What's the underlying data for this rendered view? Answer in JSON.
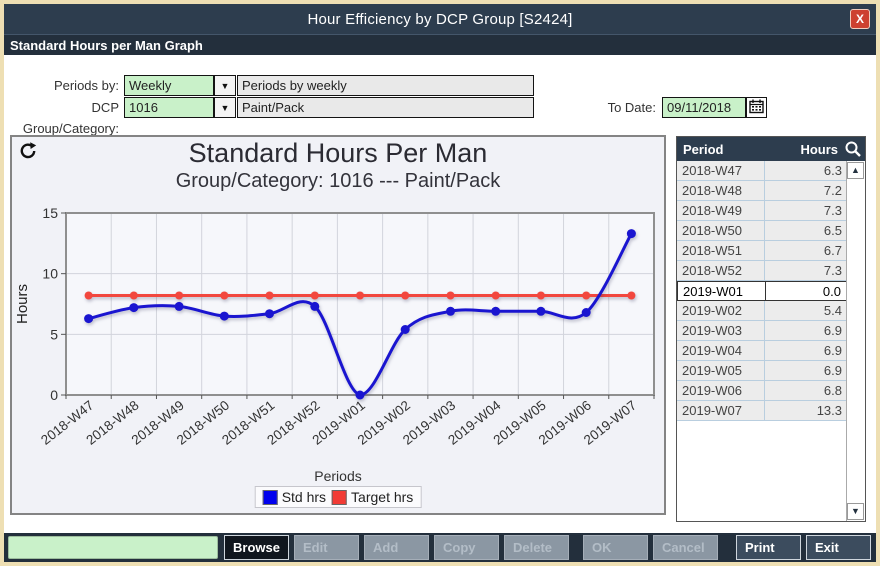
{
  "window": {
    "title": "Hour Efficiency by DCP Group [S2424]",
    "subtitle": "Standard Hours per Man Graph",
    "close_label": "X"
  },
  "form": {
    "periods_by_label": "Periods by:",
    "periods_by_value": "Weekly",
    "periods_by_desc": "Periods by weekly",
    "group_label": "DCP Group/Category:",
    "group_value": "1016",
    "group_desc": "Paint/Pack",
    "to_date_label": "To Date:",
    "to_date_value": "09/11/2018"
  },
  "chart_data": {
    "type": "line",
    "title": "Standard Hours Per Man",
    "subtitle": "Group/Category: 1016 --- Paint/Pack",
    "xlabel": "Periods",
    "ylabel": "Hours",
    "ylim": [
      0,
      15
    ],
    "yticks": [
      0,
      5,
      10,
      15
    ],
    "grid": true,
    "legend_position": "bottom",
    "categories": [
      "2018-W47",
      "2018-W48",
      "2018-W49",
      "2018-W50",
      "2018-W51",
      "2018-W52",
      "2019-W01",
      "2019-W02",
      "2019-W03",
      "2019-W04",
      "2019-W05",
      "2019-W06",
      "2019-W07"
    ],
    "series": [
      {
        "name": "Target hrs",
        "color": "#f2473e",
        "legend_color": "#f23b35",
        "smooth": false,
        "values": [
          8.2,
          8.2,
          8.2,
          8.2,
          8.2,
          8.2,
          8.2,
          8.2,
          8.2,
          8.2,
          8.2,
          8.2,
          8.2
        ]
      },
      {
        "name": "Std hrs",
        "color": "#1a15d0",
        "legend_color": "#0000ee",
        "smooth": true,
        "values": [
          6.3,
          7.2,
          7.3,
          6.5,
          6.7,
          7.3,
          0.0,
          5.4,
          6.9,
          6.9,
          6.9,
          6.8,
          13.3
        ]
      }
    ],
    "legend_order": [
      "Std hrs",
      "Target hrs"
    ]
  },
  "table": {
    "columns": [
      "Period",
      "Hours"
    ],
    "rows": [
      {
        "period": "2018-W47",
        "hours": "6.3"
      },
      {
        "period": "2018-W48",
        "hours": "7.2"
      },
      {
        "period": "2018-W49",
        "hours": "7.3"
      },
      {
        "period": "2018-W50",
        "hours": "6.5"
      },
      {
        "period": "2018-W51",
        "hours": "6.7"
      },
      {
        "period": "2018-W52",
        "hours": "7.3"
      },
      {
        "period": "2019-W01",
        "hours": "0.0"
      },
      {
        "period": "2019-W02",
        "hours": "5.4"
      },
      {
        "period": "2019-W03",
        "hours": "6.9"
      },
      {
        "period": "2019-W04",
        "hours": "6.9"
      },
      {
        "period": "2019-W05",
        "hours": "6.9"
      },
      {
        "period": "2019-W06",
        "hours": "6.8"
      },
      {
        "period": "2019-W07",
        "hours": "13.3"
      }
    ],
    "selected_period": "2019-W01"
  },
  "toolbar": {
    "status_value": "",
    "buttons": [
      {
        "label": "Browse",
        "state": "active"
      },
      {
        "label": "Edit",
        "state": "disabled"
      },
      {
        "label": "Add",
        "state": "disabled"
      },
      {
        "label": "Copy",
        "state": "disabled"
      },
      {
        "label": "Delete",
        "state": "disabled"
      },
      {
        "label": "OK",
        "state": "disabled"
      },
      {
        "label": "Cancel",
        "state": "disabled"
      },
      {
        "label": "Print",
        "state": "enabled"
      },
      {
        "label": "Exit",
        "state": "enabled"
      }
    ]
  },
  "colors": {
    "titlebar": "#2d3d4e",
    "subtitlebar": "#232f3c",
    "accent_green": "#c9f1c9",
    "close_red": "#cd4130",
    "series_blue": "#1a15d0",
    "series_red": "#f2473e"
  }
}
